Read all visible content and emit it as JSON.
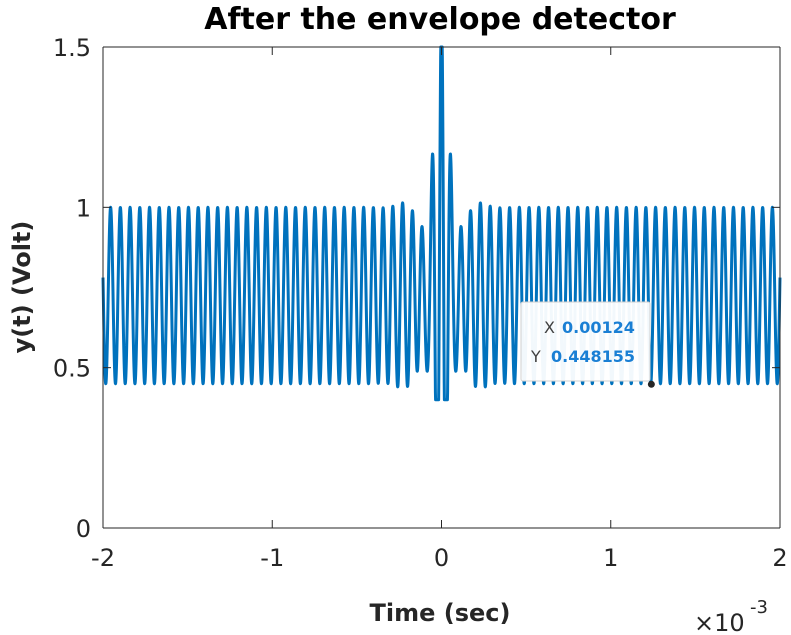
{
  "chart_data": {
    "type": "line",
    "title": "After the envelope detector",
    "xlabel": "Time (sec)",
    "ylabel": "y(t)  (Volt)",
    "x_exponent": "-3",
    "xlim": [
      -0.002,
      0.002
    ],
    "ylim": [
      0,
      1.5
    ],
    "x_ticks": [
      -0.002,
      -0.001,
      0,
      0.001,
      0.002
    ],
    "x_tick_labels": [
      "-2",
      "-1",
      "0",
      "1",
      "2"
    ],
    "y_ticks": [
      0,
      0.5,
      1,
      1.5
    ],
    "y_tick_labels": [
      "0",
      "0.5",
      "1",
      "1.5"
    ],
    "grid": false,
    "series_color": "#0072BD",
    "signal": {
      "baseline": 0.725,
      "amplitude": 0.275,
      "oscillation_period": 5.75e-05,
      "peak": {
        "x": 0.0,
        "y": 1.5
      },
      "keypoints": [
        {
          "x": -0.002,
          "y": 1.0
        },
        {
          "x": -0.0002,
          "y": 1.06
        },
        {
          "x": -3e-05,
          "y": 0.41
        },
        {
          "x": -5e-05,
          "y": 1.23
        },
        {
          "x": 0.0,
          "y": 1.5
        },
        {
          "x": 3e-05,
          "y": 1.23
        },
        {
          "x": 0.00012,
          "y": 0.41
        },
        {
          "x": 0.0002,
          "y": 1.05
        },
        {
          "x": 0.00124,
          "y": 0.448155
        },
        {
          "x": 0.002,
          "y": 1.0
        }
      ]
    },
    "datatip": {
      "x_label": "X",
      "x_value": "0.00124",
      "y_label": "Y",
      "y_value": "0.448155",
      "x": 0.00124,
      "y": 0.448155
    }
  }
}
